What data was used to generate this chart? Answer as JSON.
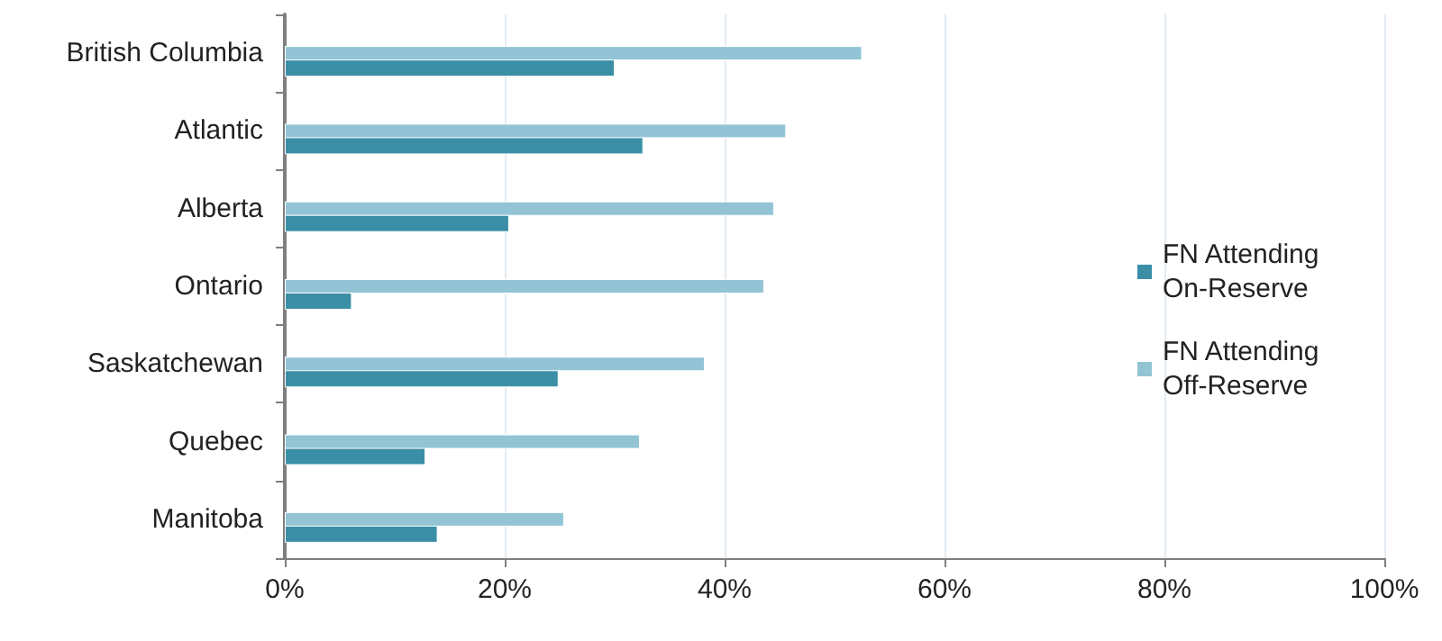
{
  "chart_data": {
    "type": "bar",
    "orientation": "horizontal",
    "categories": [
      "British Columbia",
      "Atlantic",
      "Alberta",
      "Ontario",
      "Saskatchewan",
      "Quebec",
      "Manitoba"
    ],
    "series": [
      {
        "name": "FN Attending On-Reserve",
        "color": "#3a8fa6",
        "values": [
          30.0,
          32.6,
          20.4,
          6.1,
          24.9,
          12.8,
          13.9
        ]
      },
      {
        "name": "FN Attending Off-Reserve",
        "color": "#92c4d6",
        "values": [
          52.5,
          45.6,
          44.5,
          43.6,
          38.2,
          32.3,
          25.4
        ]
      }
    ],
    "xlim": [
      0,
      100
    ],
    "xticks": [
      {
        "value": 0,
        "label": "0%"
      },
      {
        "value": 20,
        "label": "20%"
      },
      {
        "value": 40,
        "label": "40%"
      },
      {
        "value": 60,
        "label": "60%"
      },
      {
        "value": 80,
        "label": "80%"
      },
      {
        "value": 100,
        "label": "100%"
      }
    ],
    "grid": "x",
    "legend": "right"
  }
}
